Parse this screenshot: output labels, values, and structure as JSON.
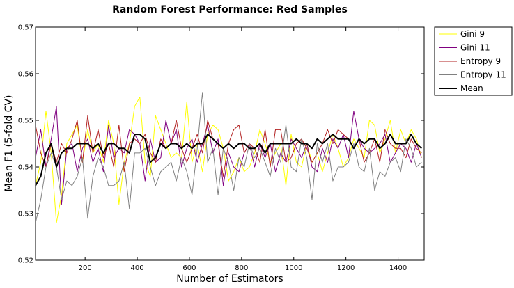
{
  "chart_data": {
    "type": "line",
    "title": "Random Forest Performance: Red Samples",
    "xlabel": "Number of Estimators",
    "ylabel": "Mean F1 (5-fold CV)",
    "xlim": [
      10,
      1500
    ],
    "ylim": [
      0.52,
      0.57
    ],
    "xticks": [
      200,
      400,
      600,
      800,
      1000,
      1200,
      1400
    ],
    "xtick_labels": [
      "200",
      "400",
      "600",
      "800",
      "1000",
      "1200",
      "1400"
    ],
    "yticks": [
      0.52,
      0.53,
      0.54,
      0.55,
      0.56,
      0.57
    ],
    "ytick_labels": [
      "0.52",
      "0.53",
      "0.54",
      "0.55",
      "0.56",
      "0.57"
    ],
    "grid": false,
    "legend_position": "outside-right",
    "x": [
      10,
      30,
      50,
      70,
      90,
      110,
      130,
      150,
      170,
      190,
      210,
      230,
      250,
      270,
      290,
      310,
      330,
      350,
      370,
      390,
      410,
      430,
      450,
      470,
      490,
      510,
      530,
      550,
      570,
      590,
      610,
      630,
      650,
      670,
      690,
      710,
      730,
      750,
      770,
      790,
      810,
      830,
      850,
      870,
      890,
      910,
      930,
      950,
      970,
      990,
      1010,
      1030,
      1050,
      1070,
      1090,
      1110,
      1130,
      1150,
      1170,
      1190,
      1210,
      1230,
      1250,
      1270,
      1290,
      1310,
      1330,
      1350,
      1370,
      1390,
      1410,
      1430,
      1450,
      1470,
      1490
    ],
    "series": [
      {
        "name": "Gini 9",
        "color": "#ffff00",
        "values": [
          0.536,
          0.541,
          0.552,
          0.543,
          0.528,
          0.534,
          0.545,
          0.547,
          0.549,
          0.541,
          0.548,
          0.543,
          0.545,
          0.541,
          0.55,
          0.545,
          0.532,
          0.541,
          0.545,
          0.553,
          0.555,
          0.541,
          0.538,
          0.551,
          0.548,
          0.545,
          0.542,
          0.543,
          0.542,
          0.554,
          0.541,
          0.545,
          0.539,
          0.547,
          0.549,
          0.548,
          0.544,
          0.537,
          0.539,
          0.542,
          0.539,
          0.54,
          0.543,
          0.548,
          0.545,
          0.541,
          0.543,
          0.545,
          0.536,
          0.547,
          0.541,
          0.54,
          0.545,
          0.541,
          0.543,
          0.539,
          0.543,
          0.547,
          0.544,
          0.54,
          0.542,
          0.546,
          0.544,
          0.542,
          0.55,
          0.549,
          0.543,
          0.546,
          0.55,
          0.543,
          0.548,
          0.545,
          0.548,
          0.546,
          0.542
        ]
      },
      {
        "name": "Gini 11",
        "color": "#800080",
        "values": [
          0.542,
          0.548,
          0.54,
          0.546,
          0.553,
          0.532,
          0.544,
          0.545,
          0.539,
          0.544,
          0.546,
          0.541,
          0.544,
          0.539,
          0.549,
          0.542,
          0.544,
          0.543,
          0.548,
          0.547,
          0.545,
          0.537,
          0.546,
          0.541,
          0.542,
          0.55,
          0.545,
          0.548,
          0.54,
          0.544,
          0.546,
          0.541,
          0.545,
          0.549,
          0.543,
          0.546,
          0.536,
          0.543,
          0.54,
          0.539,
          0.543,
          0.545,
          0.54,
          0.545,
          0.542,
          0.545,
          0.539,
          0.543,
          0.541,
          0.546,
          0.544,
          0.542,
          0.545,
          0.54,
          0.539,
          0.544,
          0.541,
          0.546,
          0.544,
          0.547,
          0.542,
          0.552,
          0.546,
          0.544,
          0.543,
          0.544,
          0.545,
          0.547,
          0.541,
          0.543,
          0.545,
          0.544,
          0.541,
          0.545,
          0.542
        ]
      },
      {
        "name": "Entropy 9",
        "color": "#b22222",
        "values": [
          0.549,
          0.543,
          0.54,
          0.545,
          0.541,
          0.545,
          0.543,
          0.546,
          0.55,
          0.541,
          0.551,
          0.543,
          0.548,
          0.542,
          0.545,
          0.54,
          0.549,
          0.539,
          0.545,
          0.546,
          0.545,
          0.547,
          0.543,
          0.541,
          0.546,
          0.544,
          0.545,
          0.55,
          0.544,
          0.541,
          0.544,
          0.547,
          0.543,
          0.55,
          0.546,
          0.545,
          0.538,
          0.545,
          0.548,
          0.549,
          0.543,
          0.545,
          0.544,
          0.541,
          0.548,
          0.54,
          0.548,
          0.548,
          0.541,
          0.542,
          0.545,
          0.546,
          0.544,
          0.541,
          0.543,
          0.545,
          0.548,
          0.545,
          0.548,
          0.547,
          0.546,
          0.544,
          0.546,
          0.541,
          0.543,
          0.546,
          0.541,
          0.548,
          0.545,
          0.544,
          0.544,
          0.542,
          0.546,
          0.544,
          0.543
        ]
      },
      {
        "name": "Entropy 11",
        "color": "#808080",
        "values": [
          0.528,
          0.533,
          0.54,
          0.543,
          0.54,
          0.533,
          0.537,
          0.536,
          0.538,
          0.542,
          0.529,
          0.538,
          0.542,
          0.54,
          0.536,
          0.536,
          0.537,
          0.541,
          0.531,
          0.543,
          0.543,
          0.544,
          0.54,
          0.536,
          0.539,
          0.54,
          0.541,
          0.537,
          0.542,
          0.539,
          0.534,
          0.544,
          0.556,
          0.541,
          0.544,
          0.534,
          0.544,
          0.541,
          0.535,
          0.542,
          0.54,
          0.545,
          0.542,
          0.544,
          0.541,
          0.538,
          0.544,
          0.541,
          0.549,
          0.54,
          0.539,
          0.546,
          0.542,
          0.533,
          0.545,
          0.541,
          0.545,
          0.537,
          0.54,
          0.54,
          0.541,
          0.545,
          0.54,
          0.539,
          0.544,
          0.535,
          0.539,
          0.538,
          0.541,
          0.542,
          0.539,
          0.546,
          0.544,
          0.54,
          0.541
        ]
      },
      {
        "name": "Mean",
        "color": "#000000",
        "values": [
          0.536,
          0.538,
          0.543,
          0.545,
          0.54,
          0.543,
          0.544,
          0.544,
          0.545,
          0.545,
          0.545,
          0.544,
          0.545,
          0.543,
          0.545,
          0.545,
          0.544,
          0.544,
          0.543,
          0.547,
          0.547,
          0.546,
          0.541,
          0.542,
          0.545,
          0.544,
          0.545,
          0.545,
          0.544,
          0.545,
          0.544,
          0.545,
          0.545,
          0.547,
          0.546,
          0.545,
          0.544,
          0.545,
          0.544,
          0.545,
          0.545,
          0.544,
          0.544,
          0.545,
          0.543,
          0.545,
          0.545,
          0.545,
          0.545,
          0.545,
          0.546,
          0.545,
          0.545,
          0.544,
          0.546,
          0.545,
          0.546,
          0.547,
          0.546,
          0.546,
          0.546,
          0.544,
          0.546,
          0.545,
          0.546,
          0.546,
          0.544,
          0.545,
          0.547,
          0.545,
          0.545,
          0.545,
          0.547,
          0.545,
          0.544
        ]
      }
    ]
  }
}
